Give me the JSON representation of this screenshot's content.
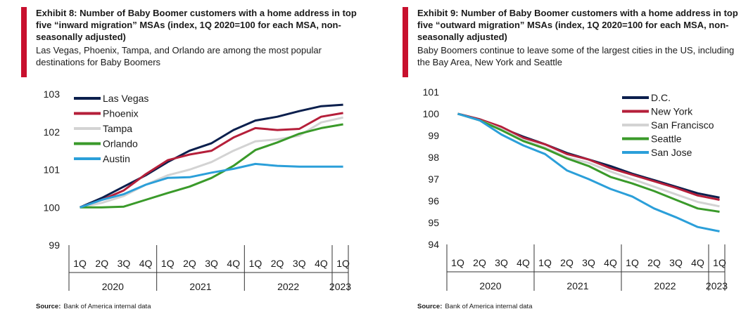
{
  "exhibits": [
    {
      "title": "Exhibit 8: Number of Baby Boomer customers with a home address in top five “inward migration” MSAs (index, 1Q 2020=100 for each MSA, non-seasonally adjusted)",
      "subtitle": "Las Vegas, Phoenix, Tampa, and Orlando are among the most popular destinations for Baby Boomers",
      "source_label": "Source:",
      "source_text": "Bank of America internal data"
    },
    {
      "title": "Exhibit 9: Number of Baby Boomer customers with a home address in top five “outward migration” MSAs (index, 1Q 2020=100 for each MSA, non-seasonally adjusted)",
      "subtitle": "Baby Boomers continue to leave some of the largest cities in the US, including the Bay Area, New York and Seattle",
      "source_label": "Source:",
      "source_text": "Bank of America internal data"
    }
  ],
  "chart_data": [
    {
      "type": "line",
      "title": "Number of Baby Boomer customers with a home address in top five inward migration MSAs",
      "x": [
        "1Q",
        "2Q",
        "3Q",
        "4Q",
        "1Q",
        "2Q",
        "3Q",
        "4Q",
        "1Q",
        "2Q",
        "3Q",
        "4Q",
        "1Q"
      ],
      "years": [
        {
          "label": "2020",
          "start": 0,
          "end": 3
        },
        {
          "label": "2021",
          "start": 4,
          "end": 7
        },
        {
          "label": "2022",
          "start": 8,
          "end": 11
        },
        {
          "label": "2023",
          "start": 12,
          "end": 12
        }
      ],
      "ylim": [
        99,
        103
      ],
      "yticks": [
        99,
        100,
        101,
        102,
        103
      ],
      "legend_position": "top-left",
      "series": [
        {
          "name": "Las Vegas",
          "color": "#0b1f4d",
          "values": [
            100,
            100.25,
            100.55,
            100.85,
            101.2,
            101.5,
            101.7,
            102.05,
            102.3,
            102.4,
            102.55,
            102.68,
            102.72
          ]
        },
        {
          "name": "Phoenix",
          "color": "#b51f3a",
          "values": [
            100,
            100.2,
            100.45,
            100.88,
            101.25,
            101.4,
            101.5,
            101.85,
            102.1,
            102.05,
            102.08,
            102.4,
            102.5
          ]
        },
        {
          "name": "Tampa",
          "color": "#d3d3d3",
          "values": [
            100,
            100.12,
            100.3,
            100.6,
            100.85,
            101.0,
            101.2,
            101.5,
            101.75,
            101.8,
            101.9,
            102.25,
            102.38
          ]
        },
        {
          "name": "Orlando",
          "color": "#3a9a2a",
          "values": [
            100,
            100.0,
            100.02,
            100.2,
            100.38,
            100.55,
            100.78,
            101.1,
            101.52,
            101.72,
            101.95,
            102.1,
            102.2
          ]
        },
        {
          "name": "Austin",
          "color": "#2b9fd9",
          "values": [
            100,
            100.2,
            100.35,
            100.6,
            100.78,
            100.8,
            100.92,
            101.02,
            101.15,
            101.1,
            101.08,
            101.08,
            101.08
          ]
        }
      ]
    },
    {
      "type": "line",
      "title": "Number of Baby Boomer customers with a home address in top five outward migration MSAs",
      "x": [
        "1Q",
        "2Q",
        "3Q",
        "4Q",
        "1Q",
        "2Q",
        "3Q",
        "4Q",
        "1Q",
        "2Q",
        "3Q",
        "4Q",
        "1Q"
      ],
      "years": [
        {
          "label": "2020",
          "start": 0,
          "end": 3
        },
        {
          "label": "2021",
          "start": 4,
          "end": 7
        },
        {
          "label": "2022",
          "start": 8,
          "end": 11
        },
        {
          "label": "2023",
          "start": 12,
          "end": 12
        }
      ],
      "ylim": [
        94,
        101
      ],
      "yticks": [
        94,
        95,
        96,
        97,
        98,
        99,
        100,
        101
      ],
      "legend_position": "top-right",
      "series": [
        {
          "name": "D.C.",
          "color": "#0b1f4d",
          "values": [
            100,
            99.75,
            99.35,
            98.95,
            98.6,
            98.2,
            97.9,
            97.6,
            97.25,
            96.95,
            96.65,
            96.35,
            96.15
          ]
        },
        {
          "name": "New York",
          "color": "#b51f3a",
          "values": [
            100,
            99.75,
            99.4,
            98.9,
            98.6,
            98.15,
            97.9,
            97.5,
            97.2,
            96.9,
            96.6,
            96.25,
            96.05
          ]
        },
        {
          "name": "San Francisco",
          "color": "#d3d3d3",
          "values": [
            100,
            99.7,
            99.3,
            98.8,
            98.45,
            98.0,
            97.75,
            97.35,
            97.0,
            96.65,
            96.3,
            95.95,
            95.75
          ]
        },
        {
          "name": "Seattle",
          "color": "#3a9a2a",
          "values": [
            100,
            99.7,
            99.25,
            98.75,
            98.4,
            97.95,
            97.6,
            97.1,
            96.8,
            96.45,
            96.05,
            95.65,
            95.5
          ]
        },
        {
          "name": "San Jose",
          "color": "#2b9fd9",
          "values": [
            100,
            99.7,
            99.05,
            98.55,
            98.15,
            97.4,
            97.0,
            96.55,
            96.2,
            95.65,
            95.25,
            94.8,
            94.6
          ]
        }
      ]
    }
  ]
}
